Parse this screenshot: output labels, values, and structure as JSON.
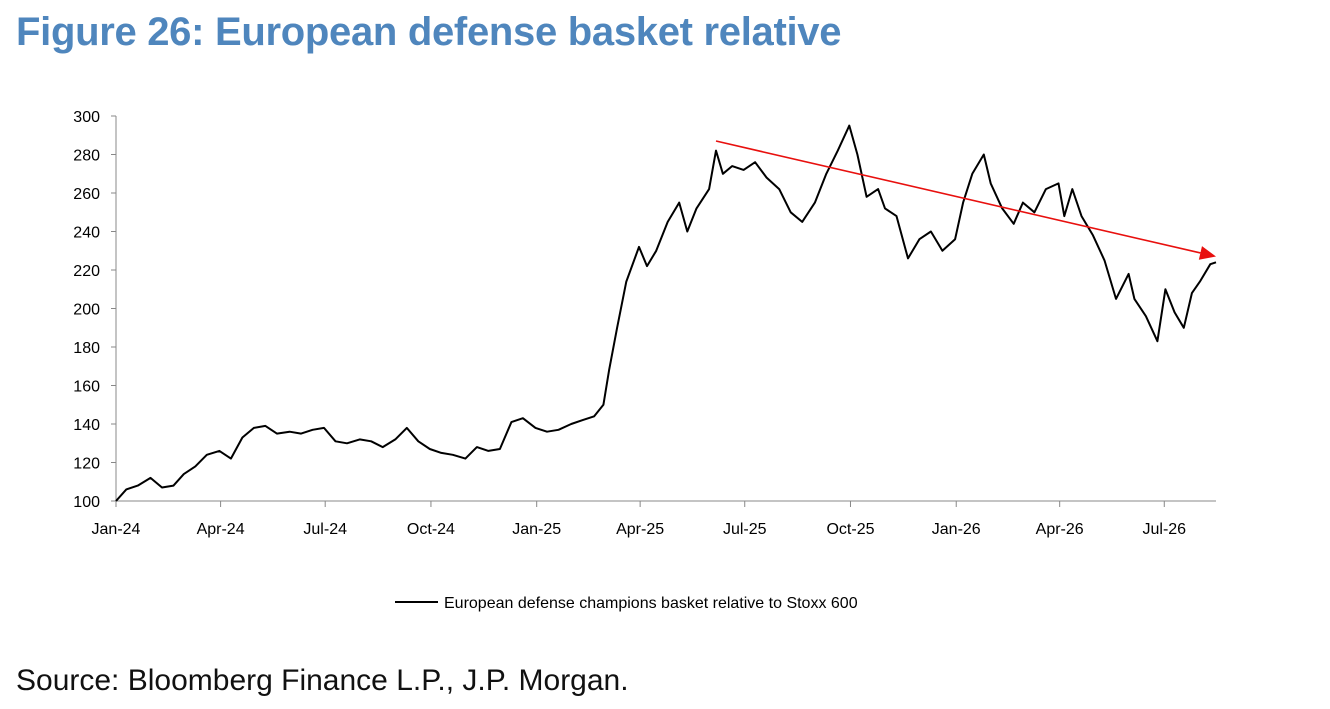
{
  "figure": {
    "title": "Figure 26: European defense basket relative",
    "source": "Source: Bloomberg Finance L.P., J.P. Morgan."
  },
  "colors": {
    "title": "#4f86bd",
    "series": "#000000",
    "trend_arrow": "#e8100e"
  },
  "chart_data": {
    "type": "line",
    "title": "",
    "xlabel": "",
    "ylabel": "",
    "ylim": [
      100,
      300
    ],
    "yticks": [
      100,
      120,
      140,
      160,
      180,
      200,
      220,
      240,
      260,
      280,
      300
    ],
    "xticks": [
      "Jan-24",
      "Apr-24",
      "Jul-24",
      "Oct-24",
      "Jan-25",
      "Apr-25",
      "Jul-25",
      "Oct-25",
      "Jan-26",
      "Apr-26",
      "Jul-26"
    ],
    "xlim": [
      "2024-01-01",
      "2026-08-15"
    ],
    "grid": false,
    "legend": {
      "position": "bottom-center",
      "entries": [
        "European defense champions basket relative to Stoxx 600"
      ]
    },
    "series": [
      {
        "name": "European defense champions basket relative to Stoxx 600",
        "color": "#000000",
        "points": [
          [
            "2024-01-01",
            100
          ],
          [
            "2024-01-10",
            106
          ],
          [
            "2024-01-20",
            108
          ],
          [
            "2024-01-31",
            112
          ],
          [
            "2024-02-10",
            107
          ],
          [
            "2024-02-20",
            108
          ],
          [
            "2024-02-29",
            114
          ],
          [
            "2024-03-10",
            118
          ],
          [
            "2024-03-20",
            124
          ],
          [
            "2024-03-31",
            126
          ],
          [
            "2024-04-10",
            122
          ],
          [
            "2024-04-20",
            133
          ],
          [
            "2024-04-30",
            138
          ],
          [
            "2024-05-10",
            139
          ],
          [
            "2024-05-20",
            135
          ],
          [
            "2024-05-31",
            136
          ],
          [
            "2024-06-10",
            135
          ],
          [
            "2024-06-20",
            137
          ],
          [
            "2024-06-30",
            138
          ],
          [
            "2024-07-10",
            131
          ],
          [
            "2024-07-20",
            130
          ],
          [
            "2024-07-31",
            132
          ],
          [
            "2024-08-10",
            131
          ],
          [
            "2024-08-20",
            128
          ],
          [
            "2024-08-31",
            132
          ],
          [
            "2024-09-10",
            138
          ],
          [
            "2024-09-20",
            131
          ],
          [
            "2024-09-30",
            127
          ],
          [
            "2024-10-10",
            125
          ],
          [
            "2024-10-20",
            124
          ],
          [
            "2024-10-31",
            122
          ],
          [
            "2024-11-10",
            128
          ],
          [
            "2024-11-20",
            126
          ],
          [
            "2024-11-30",
            127
          ],
          [
            "2024-12-10",
            141
          ],
          [
            "2024-12-20",
            143
          ],
          [
            "2024-12-31",
            138
          ],
          [
            "2025-01-10",
            136
          ],
          [
            "2025-01-20",
            137
          ],
          [
            "2025-01-31",
            140
          ],
          [
            "2025-02-10",
            142
          ],
          [
            "2025-02-20",
            144
          ],
          [
            "2025-02-28",
            150
          ],
          [
            "2025-03-05",
            168
          ],
          [
            "2025-03-12",
            190
          ],
          [
            "2025-03-20",
            214
          ],
          [
            "2025-03-31",
            232
          ],
          [
            "2025-04-07",
            222
          ],
          [
            "2025-04-15",
            230
          ],
          [
            "2025-04-25",
            245
          ],
          [
            "2025-05-05",
            255
          ],
          [
            "2025-05-12",
            240
          ],
          [
            "2025-05-20",
            252
          ],
          [
            "2025-05-31",
            262
          ],
          [
            "2025-06-06",
            282
          ],
          [
            "2025-06-12",
            270
          ],
          [
            "2025-06-20",
            274
          ],
          [
            "2025-06-30",
            272
          ],
          [
            "2025-07-10",
            276
          ],
          [
            "2025-07-20",
            268
          ],
          [
            "2025-07-31",
            262
          ],
          [
            "2025-08-10",
            250
          ],
          [
            "2025-08-20",
            245
          ],
          [
            "2025-08-31",
            255
          ],
          [
            "2025-09-10",
            270
          ],
          [
            "2025-09-20",
            282
          ],
          [
            "2025-09-30",
            295
          ],
          [
            "2025-10-07",
            280
          ],
          [
            "2025-10-15",
            258
          ],
          [
            "2025-10-25",
            262
          ],
          [
            "2025-10-31",
            252
          ],
          [
            "2025-11-10",
            248
          ],
          [
            "2025-11-20",
            226
          ],
          [
            "2025-11-30",
            236
          ],
          [
            "2025-12-10",
            240
          ],
          [
            "2025-12-20",
            230
          ],
          [
            "2025-12-31",
            236
          ],
          [
            "2026-01-07",
            255
          ],
          [
            "2026-01-15",
            270
          ],
          [
            "2026-01-25",
            280
          ],
          [
            "2026-01-31",
            265
          ],
          [
            "2026-02-10",
            252
          ],
          [
            "2026-02-20",
            244
          ],
          [
            "2026-02-28",
            255
          ],
          [
            "2026-03-10",
            250
          ],
          [
            "2026-03-20",
            262
          ],
          [
            "2026-03-31",
            265
          ],
          [
            "2026-04-05",
            248
          ],
          [
            "2026-04-12",
            262
          ],
          [
            "2026-04-20",
            248
          ],
          [
            "2026-04-30",
            238
          ],
          [
            "2026-05-10",
            225
          ],
          [
            "2026-05-20",
            205
          ],
          [
            "2026-05-31",
            218
          ],
          [
            "2026-06-05",
            205
          ],
          [
            "2026-06-15",
            196
          ],
          [
            "2026-06-25",
            183
          ],
          [
            "2026-07-02",
            210
          ],
          [
            "2026-07-10",
            198
          ],
          [
            "2026-07-18",
            190
          ],
          [
            "2026-07-25",
            208
          ],
          [
            "2026-08-01",
            214
          ],
          [
            "2026-08-10",
            223
          ],
          [
            "2026-08-15",
            224
          ]
        ]
      }
    ],
    "annotations": [
      {
        "type": "trend-arrow",
        "color": "#e8100e",
        "from": [
          "2025-06-06",
          287
        ],
        "to": [
          "2026-08-15",
          227
        ]
      }
    ]
  }
}
